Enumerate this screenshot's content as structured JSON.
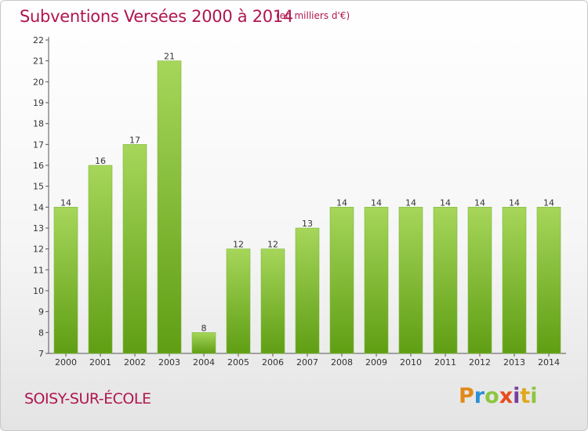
{
  "header": {
    "title": "Subventions Versées 2000 à 2014",
    "unit": "(en milliers d'€)"
  },
  "footer": {
    "commune": "SOISY-SUR-ÉCOLE",
    "brand": [
      "P",
      "r",
      "o",
      "x",
      "i",
      "t",
      "i"
    ]
  },
  "colors": {
    "bar_top": "#a6d65a",
    "bar_bottom": "#5f9e14",
    "title": "#b0154f"
  },
  "chart_data": {
    "type": "bar",
    "title": "Subventions Versées 2000 à 2014",
    "subtitle": "(en milliers d'€)",
    "categories": [
      "2000",
      "2001",
      "2002",
      "2003",
      "2004",
      "2005",
      "2006",
      "2007",
      "2008",
      "2009",
      "2010",
      "2011",
      "2012",
      "2013",
      "2014"
    ],
    "values": [
      14,
      16,
      17,
      21,
      8,
      12,
      12,
      13,
      14,
      14,
      14,
      14,
      14,
      14,
      14
    ],
    "ylim": [
      7,
      22
    ],
    "yticks": [
      7,
      8,
      9,
      10,
      11,
      12,
      13,
      14,
      15,
      16,
      17,
      18,
      19,
      20,
      21,
      22
    ],
    "grid": false,
    "legend": "none"
  }
}
